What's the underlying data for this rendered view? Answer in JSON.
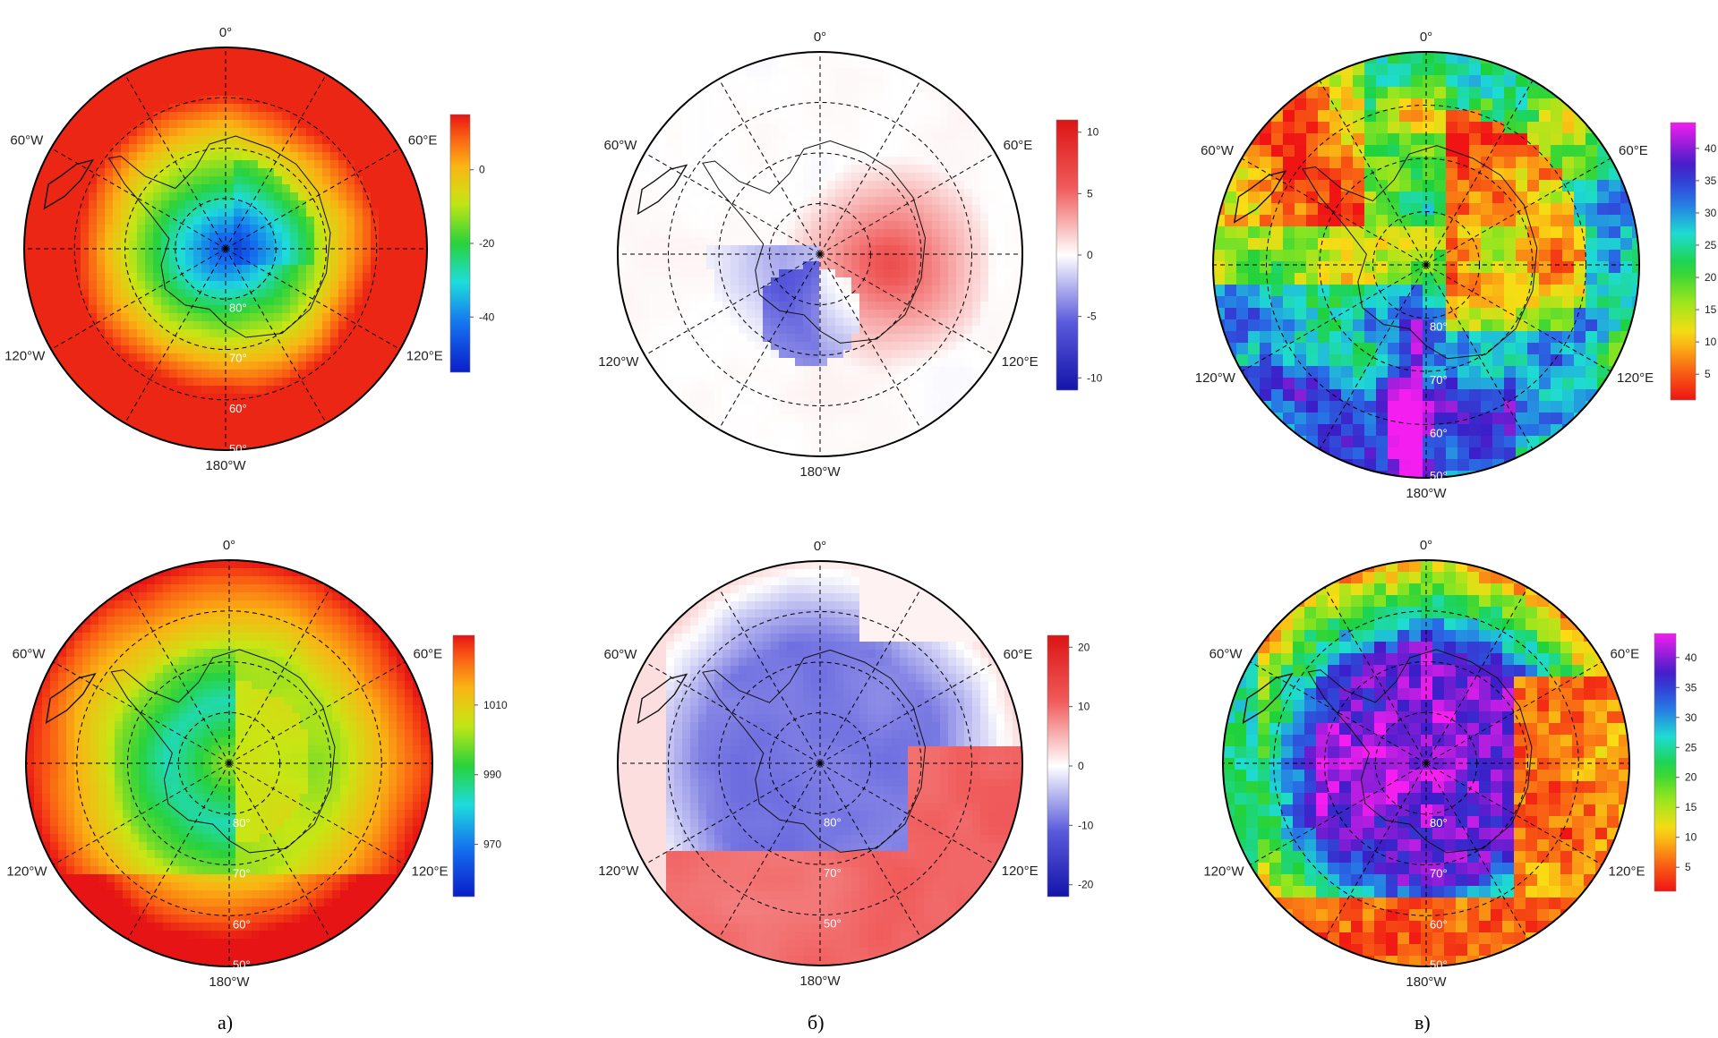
{
  "panels": [
    {
      "row": 0,
      "col": 0,
      "field": "smooth",
      "colormap": "rainbow",
      "colorbar": {
        "ticks": [
          "0",
          "-20",
          "-40"
        ],
        "tick_values": [
          0,
          -20,
          -40
        ],
        "range": [
          -55,
          15
        ]
      },
      "lon_labels": {
        "top": "0°",
        "left": "60°W",
        "right": "60°E",
        "lower_left": "120°W",
        "lower_right": "120°E",
        "bottom": "180°W"
      },
      "lat_labels": [
        "80°",
        "70°",
        "60°",
        "50°"
      ]
    },
    {
      "row": 0,
      "col": 1,
      "field": "smooth",
      "colormap": "diverging",
      "colorbar": {
        "ticks": [
          "10",
          "5",
          "0",
          "-5",
          "-10"
        ],
        "tick_values": [
          10,
          5,
          0,
          -5,
          -10
        ],
        "range": [
          -11,
          11
        ]
      },
      "lon_labels": {
        "top": "0°",
        "left": "60°W",
        "right": "60°E",
        "lower_left": "120°W",
        "lower_right": "120°E",
        "bottom": "180°W"
      },
      "lat_labels": []
    },
    {
      "row": 0,
      "col": 2,
      "field": "blocky",
      "colormap": "rainbow_magenta",
      "colorbar": {
        "ticks": [
          "40",
          "35",
          "30",
          "25",
          "20",
          "15",
          "10",
          "5"
        ],
        "tick_values": [
          40,
          35,
          30,
          25,
          20,
          15,
          10,
          5
        ],
        "range": [
          1,
          44
        ]
      },
      "lon_labels": {
        "top": "0°",
        "left": "60°W",
        "right": "60°E",
        "lower_left": "120°W",
        "lower_right": "120°E",
        "bottom": "180°W"
      },
      "lat_labels": [
        "80°",
        "70°",
        "60°",
        "50°"
      ]
    },
    {
      "row": 1,
      "col": 0,
      "field": "smooth",
      "colormap": "rainbow",
      "colorbar": {
        "ticks": [
          "1010",
          "990",
          "970"
        ],
        "tick_values": [
          1010,
          990,
          970
        ],
        "range": [
          955,
          1030
        ]
      },
      "lon_labels": {
        "top": "0°",
        "left": "60°W",
        "right": "60°E",
        "lower_left": "120°W",
        "lower_right": "120°E",
        "bottom": "180°W"
      },
      "lat_labels": [
        "80°",
        "70°",
        "60°",
        "50°"
      ]
    },
    {
      "row": 1,
      "col": 1,
      "field": "smooth",
      "colormap": "diverging",
      "colorbar": {
        "ticks": [
          "20",
          "10",
          "0",
          "-10",
          "-20"
        ],
        "tick_values": [
          20,
          10,
          0,
          -10,
          -20
        ],
        "range": [
          -22,
          22
        ]
      },
      "lon_labels": {
        "top": "0°",
        "left": "60°W",
        "right": "60°E",
        "lower_left": "120°W",
        "lower_right": "120°E",
        "bottom": "180°W"
      },
      "lat_labels": [
        "80°",
        "70°",
        "50°"
      ]
    },
    {
      "row": 1,
      "col": 2,
      "field": "blocky",
      "colormap": "rainbow_magenta",
      "colorbar": {
        "ticks": [
          "40",
          "35",
          "30",
          "25",
          "20",
          "15",
          "10",
          "5"
        ],
        "tick_values": [
          40,
          35,
          30,
          25,
          20,
          15,
          10,
          5
        ],
        "range": [
          1,
          44
        ]
      },
      "lon_labels": {
        "top": "0°",
        "left": "60°W",
        "right": "60°E",
        "lower_left": "120°W",
        "lower_right": "120°E",
        "bottom": "180°W"
      },
      "lat_labels": [
        "80°",
        "70°",
        "60°",
        "50°"
      ]
    }
  ],
  "captions": [
    "а)",
    "б)",
    "в)"
  ],
  "colors": {
    "graticule": "#000000",
    "coastline": "#111111",
    "lat_label": "#ffffff"
  }
}
